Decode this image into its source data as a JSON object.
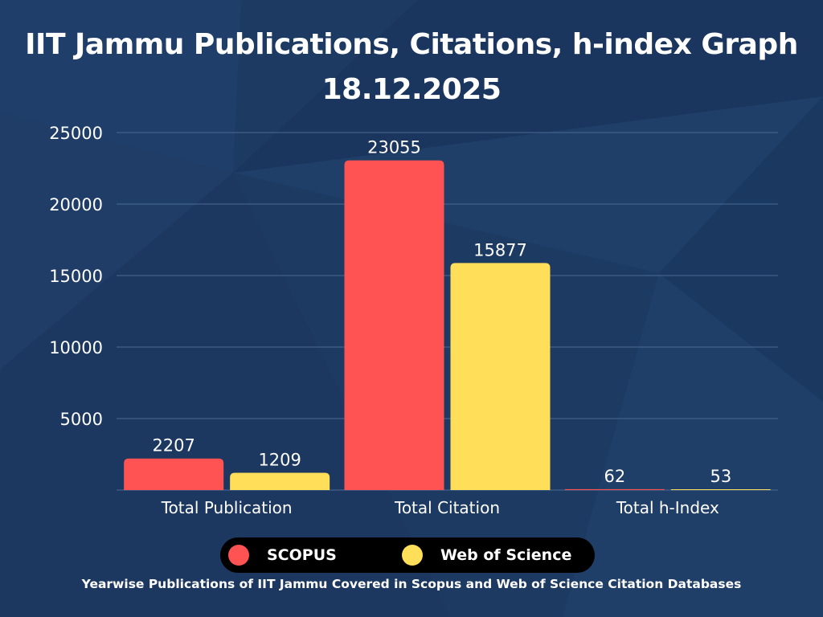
{
  "title": {
    "line1": "IIT Jammu Publications, Citations, h-index Graph",
    "line2": "18.12.2025"
  },
  "colors": {
    "background": "#1d3a63",
    "scopus": "#ff5252",
    "wos": "#ffde59",
    "gridline": "#4a6a92"
  },
  "chart_data": {
    "type": "bar",
    "categories": [
      "Total Publication",
      "Total Citation",
      "Total h-Index"
    ],
    "series": [
      {
        "name": "SCOPUS",
        "values": [
          2207,
          23055,
          62
        ],
        "color": "#ff5252"
      },
      {
        "name": "Web of Science",
        "values": [
          1209,
          15877,
          53
        ],
        "color": "#ffde59"
      }
    ],
    "ylim": [
      0,
      25000
    ],
    "yticks": [
      5000,
      10000,
      15000,
      20000,
      25000
    ],
    "grid": true,
    "legend_position": "bottom"
  },
  "legend": {
    "items": [
      {
        "label": "SCOPUS",
        "color": "#ff5252"
      },
      {
        "label": "Web of Science",
        "color": "#ffde59"
      }
    ]
  },
  "footer": "Yearwise Publications of IIT Jammu Covered in Scopus and Web of Science Citation Databases"
}
